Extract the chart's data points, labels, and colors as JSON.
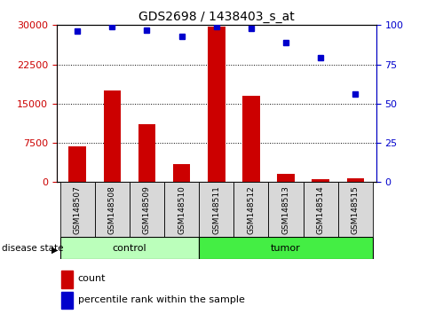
{
  "title": "GDS2698 / 1438403_s_at",
  "samples": [
    "GSM148507",
    "GSM148508",
    "GSM148509",
    "GSM148510",
    "GSM148511",
    "GSM148512",
    "GSM148513",
    "GSM148514",
    "GSM148515"
  ],
  "counts": [
    6800,
    17500,
    11000,
    3500,
    29800,
    16500,
    1500,
    500,
    700
  ],
  "percentiles": [
    96,
    99,
    97,
    93,
    99,
    98,
    89,
    79,
    56
  ],
  "groups": [
    "control",
    "control",
    "control",
    "control",
    "tumor",
    "tumor",
    "tumor",
    "tumor",
    "tumor"
  ],
  "bar_color": "#cc0000",
  "dot_color": "#0000cc",
  "control_color": "#bbffbb",
  "tumor_color": "#44ee44",
  "left_axis_color": "#cc0000",
  "right_axis_color": "#0000cc",
  "yticks_left": [
    0,
    7500,
    15000,
    22500,
    30000
  ],
  "yticks_right": [
    0,
    25,
    50,
    75,
    100
  ],
  "ylim_left": [
    0,
    30000
  ],
  "ylim_right": [
    0,
    100
  ],
  "bar_width": 0.5,
  "tick_fontsize": 8,
  "title_fontsize": 10,
  "legend_items": [
    "count",
    "percentile rank within the sample"
  ],
  "disease_state_label": "disease state"
}
